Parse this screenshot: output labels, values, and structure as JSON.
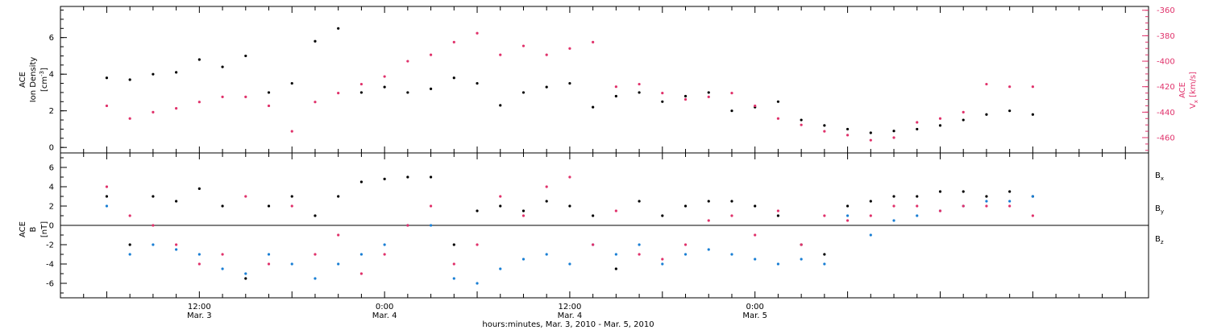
{
  "colors": {
    "black": "#000000",
    "red": "#e0326b",
    "blue": "#1a7fd4",
    "frame": "#000000"
  },
  "chart_data": [
    {
      "type": "scatter",
      "panel": "top",
      "left_axis": {
        "label_line1": "ACE",
        "label_line2": "Ion Density",
        "unit_text": "cm",
        "unit_exp": "-3",
        "ylim": [
          -0.3,
          7.7
        ],
        "ticks": [
          "0",
          "2",
          "4",
          "6"
        ]
      },
      "right_axis": {
        "label_main": "ACE",
        "label_sub": "V",
        "label_sub_index": "x",
        "unit": "km/s",
        "ylim": [
          -472,
          -357
        ],
        "ticks": [
          "-360",
          "-380",
          "-400",
          "-420",
          "-440",
          "-460"
        ]
      },
      "series": [
        {
          "color": "black",
          "axis": "left",
          "x": [
            0,
            3,
            6,
            9,
            12,
            15,
            18,
            21,
            24,
            27,
            30,
            33,
            36,
            39,
            42,
            45,
            48,
            51,
            54,
            57,
            60,
            63,
            66,
            69,
            72,
            75,
            78,
            81,
            84,
            87,
            90,
            93,
            96,
            99,
            102,
            105,
            108,
            111,
            114,
            117,
            120
          ],
          "y": [
            3.8,
            3.7,
            4.0,
            4.1,
            4.8,
            4.4,
            5.0,
            3.0,
            3.5,
            5.8,
            6.5,
            3.0,
            3.3,
            3.0,
            3.2,
            3.8,
            3.5,
            2.3,
            3.0,
            3.3,
            3.5,
            2.2,
            2.8,
            3.0,
            2.5,
            2.8,
            3.0,
            2.0,
            2.2,
            2.5,
            1.5,
            1.2,
            1.0,
            0.8,
            0.9,
            1.0,
            1.2,
            1.5,
            1.8,
            2.0,
            1.8
          ]
        },
        {
          "color": "red",
          "axis": "right",
          "x": [
            0,
            3,
            6,
            9,
            12,
            15,
            18,
            21,
            24,
            27,
            30,
            33,
            36,
            39,
            42,
            45,
            48,
            51,
            54,
            57,
            60,
            63,
            66,
            69,
            72,
            75,
            78,
            81,
            84,
            87,
            90,
            93,
            96,
            99,
            102,
            105,
            108,
            111,
            114,
            117,
            120
          ],
          "y": [
            -435,
            -445,
            -440,
            -437,
            -432,
            -428,
            -428,
            -435,
            -455,
            -432,
            -425,
            -418,
            -412,
            -400,
            -395,
            -385,
            -378,
            -395,
            -388,
            -395,
            -390,
            -385,
            -420,
            -418,
            -425,
            -430,
            -428,
            -425,
            -435,
            -445,
            -450,
            -455,
            -458,
            -462,
            -460,
            -448,
            -445,
            -440,
            -418,
            -420,
            -420
          ]
        }
      ]
    },
    {
      "type": "scatter",
      "panel": "bottom",
      "left_axis": {
        "label_line1": "ACE",
        "label_line2": "B",
        "unit_text": "nT",
        "ylim": [
          -7.5,
          7.5
        ],
        "ticks": [
          "6",
          "4",
          "2",
          "0",
          "-2",
          "-4",
          "-6"
        ]
      },
      "legend": [
        {
          "label": "B",
          "sub": "x",
          "color": "black"
        },
        {
          "label": "B",
          "sub": "y",
          "color": "blue"
        },
        {
          "label": "B",
          "sub": "z",
          "color": "red"
        }
      ],
      "series": [
        {
          "name": "Bx",
          "color": "black",
          "x": [
            0,
            3,
            6,
            9,
            12,
            15,
            18,
            21,
            24,
            27,
            30,
            33,
            36,
            39,
            42,
            45,
            48,
            51,
            54,
            57,
            60,
            63,
            66,
            69,
            72,
            75,
            78,
            81,
            84,
            87,
            90,
            93,
            96,
            99,
            102,
            105,
            108,
            111,
            114,
            117,
            120
          ],
          "y": [
            3.0,
            -2.0,
            3.0,
            2.5,
            3.8,
            2.0,
            -5.5,
            2.0,
            3.0,
            1.0,
            3.0,
            4.5,
            4.8,
            5.0,
            5.0,
            -2.0,
            1.5,
            2.0,
            1.5,
            2.5,
            2.0,
            1.0,
            -4.5,
            2.5,
            1.0,
            2.0,
            2.5,
            2.5,
            2.0,
            1.0,
            -2.0,
            -3.0,
            2.0,
            2.5,
            3.0,
            3.0,
            3.5,
            3.5,
            3.0,
            3.5,
            3.0
          ]
        },
        {
          "name": "By",
          "color": "blue",
          "x": [
            0,
            3,
            6,
            9,
            12,
            15,
            18,
            21,
            24,
            27,
            30,
            33,
            36,
            39,
            42,
            45,
            48,
            51,
            54,
            57,
            60,
            63,
            66,
            69,
            72,
            75,
            78,
            81,
            84,
            87,
            90,
            93,
            96,
            99,
            102,
            105,
            108,
            111,
            114,
            117,
            120
          ],
          "y": [
            2.0,
            -3.0,
            -2.0,
            -2.5,
            -3.0,
            -4.5,
            -5.0,
            -3.0,
            -4.0,
            -5.5,
            -4.0,
            -3.0,
            -2.0,
            0.0,
            0.0,
            -5.5,
            -6.0,
            -4.5,
            -3.5,
            -3.0,
            -4.0,
            -2.0,
            -3.0,
            -2.0,
            -4.0,
            -3.0,
            -2.5,
            -3.0,
            -3.5,
            -4.0,
            -3.5,
            -4.0,
            1.0,
            -1.0,
            0.5,
            1.0,
            1.5,
            2.0,
            2.5,
            2.5,
            3.0
          ]
        },
        {
          "name": "Bz",
          "color": "red",
          "x": [
            0,
            3,
            6,
            9,
            12,
            15,
            18,
            21,
            24,
            27,
            30,
            33,
            36,
            39,
            42,
            45,
            48,
            51,
            54,
            57,
            60,
            63,
            66,
            69,
            72,
            75,
            78,
            81,
            84,
            87,
            90,
            93,
            96,
            99,
            102,
            105,
            108,
            111,
            114,
            117,
            120
          ],
          "y": [
            4.0,
            1.0,
            0.0,
            -2.0,
            -4.0,
            -3.0,
            3.0,
            -4.0,
            2.0,
            -3.0,
            -1.0,
            -5.0,
            -3.0,
            0.0,
            2.0,
            -4.0,
            -2.0,
            3.0,
            1.0,
            4.0,
            5.0,
            -2.0,
            1.5,
            -3.0,
            -3.5,
            -2.0,
            0.5,
            1.0,
            -1.0,
            1.5,
            -2.0,
            1.0,
            0.5,
            1.0,
            2.0,
            2.0,
            1.5,
            2.0,
            2.0,
            2.0,
            1.0
          ]
        }
      ]
    }
  ],
  "x_axis": {
    "xlim": [
      -6,
      135
    ],
    "major_ticks": [
      {
        "x": 12,
        "line1": "12:00",
        "line2": "Mar. 3"
      },
      {
        "x": 36,
        "line1": "0:00",
        "line2": "Mar. 4"
      },
      {
        "x": 60,
        "line1": "12:00",
        "line2": "Mar. 4"
      },
      {
        "x": 84,
        "line1": "0:00",
        "line2": "Mar. 5"
      }
    ],
    "title": "hours:minutes, Mar.  3, 2010 - Mar.  5, 2010"
  }
}
